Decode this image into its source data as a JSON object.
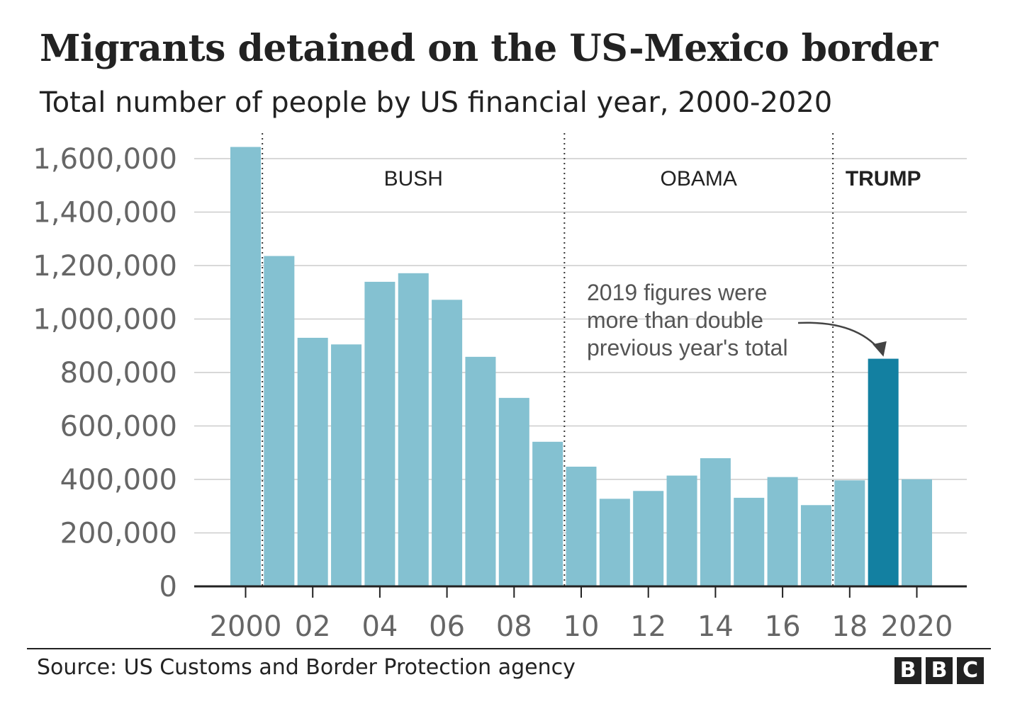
{
  "title": "Migrants detained on the US-Mexico border",
  "subtitle": "Total number of people by US financial year, 2000-2020",
  "source": "Source: US Customs and Border Protection agency",
  "logo": [
    "B",
    "B",
    "C"
  ],
  "colors": {
    "bar": "#84c1d1",
    "highlight": "#1380a1",
    "grid": "#cccccc",
    "axis": "#222222"
  },
  "chart_data": {
    "type": "bar",
    "title": "Migrants detained on the US-Mexico border",
    "subtitle": "Total number of people by US financial year, 2000-2020",
    "xlabel": "",
    "ylabel": "",
    "ylim": [
      0,
      1600000
    ],
    "yticks": [
      0,
      200000,
      400000,
      600000,
      800000,
      1000000,
      1200000,
      1400000,
      1600000
    ],
    "ytick_labels": [
      "0",
      "200,000",
      "400,000",
      "600,000",
      "800,000",
      "1,000,000",
      "1,200,000",
      "1,400,000",
      "1,600,000"
    ],
    "categories": [
      "2000",
      "2001",
      "2002",
      "2003",
      "2004",
      "2005",
      "2006",
      "2007",
      "2008",
      "2009",
      "2010",
      "2011",
      "2012",
      "2013",
      "2014",
      "2015",
      "2016",
      "2017",
      "2018",
      "2019",
      "2020"
    ],
    "values": [
      1643679,
      1235718,
      929809,
      905065,
      1139282,
      1171396,
      1071972,
      858638,
      705005,
      540865,
      447731,
      327577,
      356873,
      414397,
      479371,
      331333,
      408870,
      303916,
      396579,
      851508,
      400651
    ],
    "highlight": "2019",
    "xtick_labels": [
      {
        "category": "2000",
        "label": "2000"
      },
      {
        "category": "2002",
        "label": "02"
      },
      {
        "category": "2004",
        "label": "04"
      },
      {
        "category": "2006",
        "label": "06"
      },
      {
        "category": "2008",
        "label": "08"
      },
      {
        "category": "2010",
        "label": "10"
      },
      {
        "category": "2012",
        "label": "12"
      },
      {
        "category": "2014",
        "label": "14"
      },
      {
        "category": "2016",
        "label": "16"
      },
      {
        "category": "2018",
        "label": "18"
      },
      {
        "category": "2020",
        "label": "2020"
      }
    ],
    "eras": [
      {
        "label": "BUSH",
        "start": "2001",
        "end": "2009",
        "bold": false
      },
      {
        "label": "OBAMA",
        "start": "2010",
        "end": "2017",
        "bold": false
      },
      {
        "label": "TRUMP",
        "start": "2018",
        "end": "2020",
        "bold": true
      }
    ],
    "era_dividers_after": [
      "2000",
      "2009",
      "2017"
    ],
    "annotation": {
      "lines": [
        "2019 figures were",
        "more than double",
        "previous year's total"
      ],
      "target": "2019"
    },
    "grid": true
  }
}
